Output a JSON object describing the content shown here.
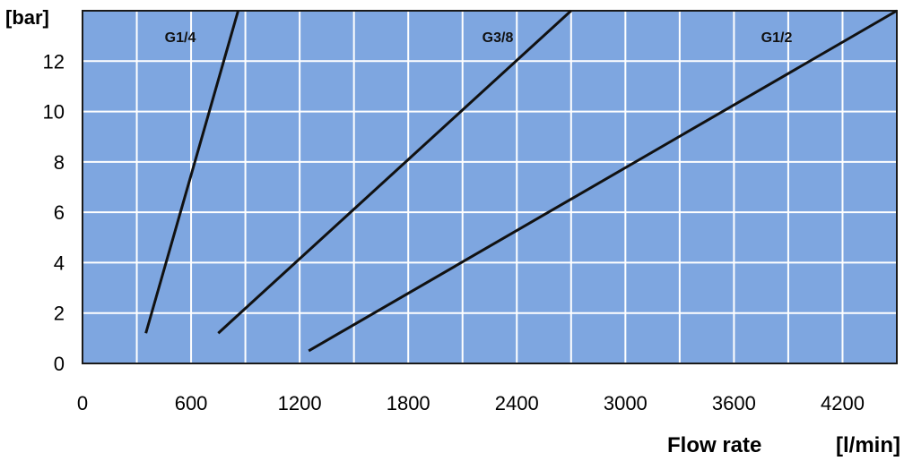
{
  "chart_data": {
    "type": "line",
    "title": "",
    "ylabel": "[bar]",
    "xlabel_name": "Flow rate",
    "xlabel_unit": "[l/min]",
    "xlim": [
      0,
      4500
    ],
    "ylim": [
      0,
      14
    ],
    "x_ticks": [
      0,
      600,
      1200,
      1800,
      2400,
      3000,
      3600,
      4200
    ],
    "y_ticks": [
      0,
      2,
      4,
      6,
      8,
      10,
      12
    ],
    "grid_x_step": 300,
    "grid_y_step": 2,
    "grid": true,
    "plot_background": "#7ea6e0",
    "grid_color": "#ffffff",
    "line_color": "#111111",
    "series": [
      {
        "name": "G1/4",
        "points": [
          [
            350,
            1.2
          ],
          [
            860,
            14
          ]
        ]
      },
      {
        "name": "G3/8",
        "points": [
          [
            750,
            1.2
          ],
          [
            2700,
            14
          ]
        ]
      },
      {
        "name": "G1/2",
        "points": [
          [
            1250,
            0.5
          ],
          [
            4500,
            14
          ]
        ]
      }
    ]
  }
}
